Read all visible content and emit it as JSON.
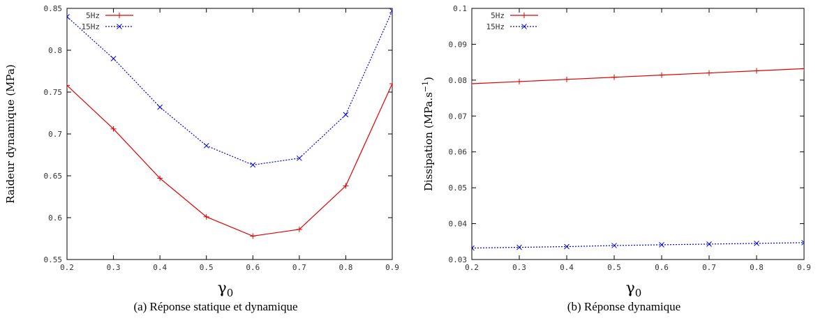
{
  "chart_data": [
    {
      "type": "line",
      "caption": "(a)  Réponse statique et dynamique",
      "xlabel": "γ",
      "xlabel_sub": "0",
      "ylabel": "Raideur dynamique (MPa)",
      "xlim": [
        0.2,
        0.9
      ],
      "ylim": [
        0.55,
        0.85
      ],
      "xticks": [
        0.2,
        0.3,
        0.4,
        0.5,
        0.6,
        0.7,
        0.8,
        0.9
      ],
      "yticks": [
        0.55,
        0.6,
        0.65,
        0.7,
        0.75,
        0.8,
        0.85
      ],
      "xtick_labels": [
        "0.2",
        "0.3",
        "0.4",
        "0.5",
        "0.6",
        "0.7",
        "0.8",
        "0.9"
      ],
      "ytick_labels": [
        "0.55",
        "0.6",
        "0.65",
        "0.7",
        "0.75",
        "0.8",
        "0.85"
      ],
      "legend_position": "top-left",
      "grid": false,
      "x": [
        0.2,
        0.3,
        0.4,
        0.5,
        0.6,
        0.7,
        0.8,
        0.9
      ],
      "series": [
        {
          "name": "5Hz",
          "color": "#e00000",
          "marker": "plus",
          "dash": "solid",
          "values": [
            0.758,
            0.706,
            0.647,
            0.601,
            0.578,
            0.586,
            0.638,
            0.76
          ]
        },
        {
          "name": "15Hz",
          "color": "#0000e0",
          "marker": "cross",
          "dash": "dotted",
          "values": [
            0.84,
            0.79,
            0.732,
            0.686,
            0.663,
            0.671,
            0.723,
            0.847
          ]
        }
      ]
    },
    {
      "type": "line",
      "caption": "(b)  Réponse dynamique",
      "xlabel": "γ",
      "xlabel_sub": "0",
      "ylabel": "Dissipation (MPa.s",
      "ylabel_sup": "−1",
      "ylabel_end": ")",
      "xlim": [
        0.2,
        0.9
      ],
      "ylim": [
        0.03,
        0.1
      ],
      "xticks": [
        0.2,
        0.3,
        0.4,
        0.5,
        0.6,
        0.7,
        0.8,
        0.9
      ],
      "yticks": [
        0.03,
        0.04,
        0.05,
        0.06,
        0.07,
        0.08,
        0.09,
        0.1
      ],
      "xtick_labels": [
        "0.2",
        "0.3",
        "0.4",
        "0.5",
        "0.6",
        "0.7",
        "0.8",
        "0.9"
      ],
      "ytick_labels": [
        "0.03",
        "0.04",
        "0.05",
        "0.06",
        "0.07",
        "0.08",
        "0.09",
        "0.1"
      ],
      "legend_position": "top-left",
      "grid": false,
      "x": [
        0.2,
        0.3,
        0.4,
        0.5,
        0.6,
        0.7,
        0.8,
        0.9
      ],
      "series": [
        {
          "name": "5Hz",
          "color": "#e00000",
          "marker": "plus",
          "dash": "solid",
          "values": [
            0.079,
            0.0796,
            0.0802,
            0.0808,
            0.0814,
            0.082,
            0.0826,
            0.0832
          ]
        },
        {
          "name": "15Hz",
          "color": "#0000e0",
          "marker": "cross",
          "dash": "dotted",
          "values": [
            0.0332,
            0.0334,
            0.0336,
            0.0339,
            0.0341,
            0.0343,
            0.0345,
            0.0347
          ]
        }
      ]
    }
  ]
}
